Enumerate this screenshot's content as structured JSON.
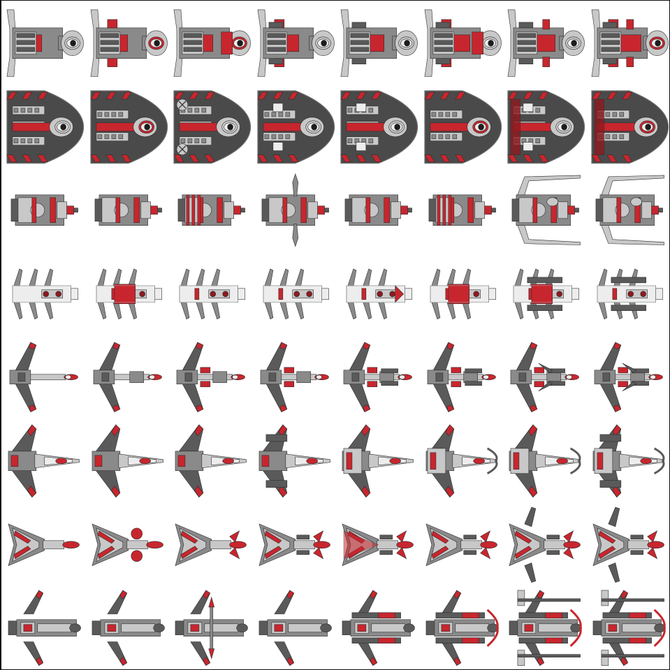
{
  "sprite_sheet": {
    "columns": 8,
    "rows": 8,
    "palette": {
      "hull_dark": "#5a5a5a",
      "hull_mid": "#8a8a8a",
      "hull_light": "#c8c8c8",
      "hull_white": "#ededed",
      "accent_red": "#c8262e",
      "accent_red_dark": "#8e1a1f",
      "outline": "#2e2e2e",
      "background": "#ffffff",
      "frame": "#0f0f0f"
    },
    "ship_families": [
      {
        "row": 1,
        "family": "cruiser-t-frame",
        "variants": 8
      },
      {
        "row": 2,
        "family": "carrier-dome-hull",
        "variants": 8
      },
      {
        "row": 3,
        "family": "gunboat-block",
        "variants": 8
      },
      {
        "row": 4,
        "family": "frigate-white-spine",
        "variants": 8
      },
      {
        "row": 5,
        "family": "fighter-swept-wing",
        "variants": 8
      },
      {
        "row": 6,
        "family": "interceptor-forward-swept",
        "variants": 8
      },
      {
        "row": 7,
        "family": "bomber-arrow",
        "variants": 8
      },
      {
        "row": 8,
        "family": "destroyer-longbody",
        "variants": 8
      }
    ]
  }
}
